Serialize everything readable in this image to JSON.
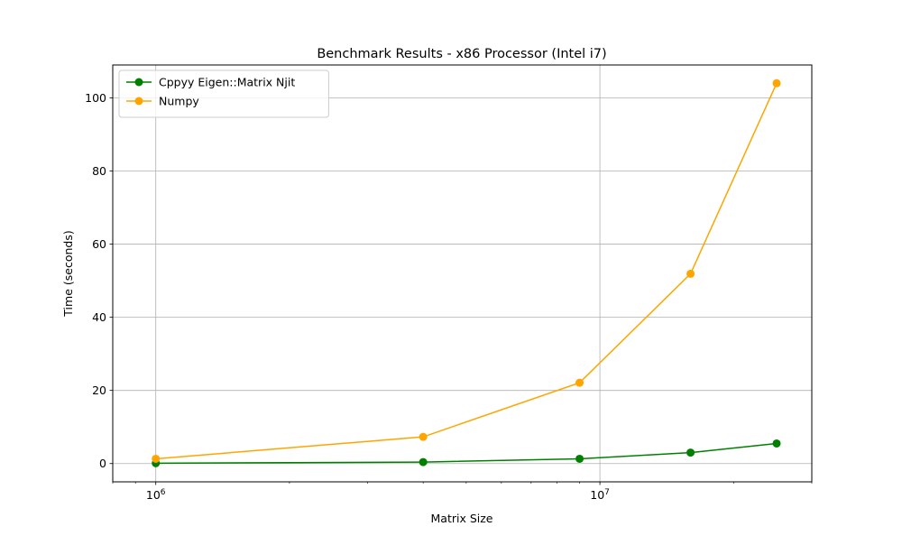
{
  "chart_data": {
    "type": "line",
    "title": "Benchmark Results - x86 Processor (Intel i7)",
    "xlabel": "Matrix Size",
    "ylabel": "Time (seconds)",
    "xscale": "log",
    "xlim": [
      800000,
      30000000
    ],
    "ylim": [
      -5,
      109
    ],
    "x": [
      1000000,
      4000000,
      9000000,
      16000000,
      25000000
    ],
    "xticks": [
      {
        "value": 1000000,
        "base": "10",
        "exp": "6"
      },
      {
        "value": 10000000,
        "base": "10",
        "exp": "7"
      }
    ],
    "yticks": [
      0,
      20,
      40,
      60,
      80,
      100
    ],
    "grid": true,
    "legend_position": "top-left",
    "series": [
      {
        "name": "Cppyy Eigen::Matrix Njit",
        "color": "#008000",
        "values": [
          0.1,
          0.4,
          1.3,
          3.0,
          5.5
        ]
      },
      {
        "name": "Numpy",
        "color": "#FFA500",
        "values": [
          1.3,
          7.3,
          22.1,
          51.9,
          104.0
        ]
      }
    ]
  }
}
